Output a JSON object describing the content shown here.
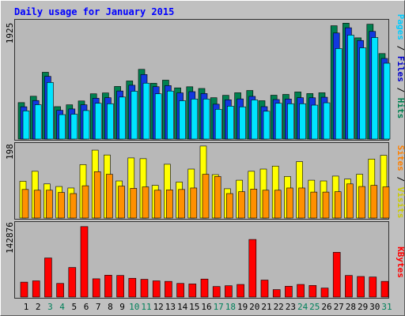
{
  "chart_data": [
    {
      "type": "bar",
      "title": "Daily usage for January 2015",
      "ymax_label": "1925",
      "right_labels": [
        {
          "text": "Pages",
          "color": "#00ccff"
        },
        {
          "text": " / ",
          "color": "#000000"
        },
        {
          "text": "Files",
          "color": "#0000cc"
        },
        {
          "text": " / ",
          "color": "#000000"
        },
        {
          "text": "Hits",
          "color": "#008050"
        }
      ],
      "colors": {
        "hits": "#008050",
        "files": "#1238e0",
        "pages": "#00e4ff"
      },
      "categories": [
        "1",
        "2",
        "3",
        "4",
        "5",
        "6",
        "7",
        "8",
        "9",
        "10",
        "11",
        "12",
        "13",
        "14",
        "15",
        "16",
        "17",
        "18",
        "19",
        "20",
        "21",
        "22",
        "23",
        "24",
        "25",
        "26",
        "27",
        "28",
        "29",
        "30",
        "31"
      ],
      "weekend_days": [
        3,
        4,
        10,
        11,
        17,
        18,
        24,
        25,
        31
      ],
      "series": [
        {
          "name": "Hits",
          "values": [
            596,
            700,
            1092,
            530,
            560,
            623,
            740,
            754,
            860,
            950,
            1140,
            912,
            963,
            837,
            855,
            827,
            676,
            715,
            757,
            794,
            627,
            717,
            730,
            770,
            744,
            757,
            1853,
            1895,
            1655,
            1878,
            1398
          ]
        },
        {
          "name": "Files",
          "values": [
            528,
            630,
            1025,
            470,
            492,
            560,
            667,
            676,
            786,
            880,
            1055,
            856,
            874,
            755,
            775,
            744,
            570,
            642,
            657,
            698,
            530,
            646,
            654,
            676,
            675,
            684,
            1734,
            1820,
            1612,
            1760,
            1318
          ]
        },
        {
          "name": "Pages",
          "values": [
            461,
            562,
            925,
            400,
            407,
            466,
            585,
            578,
            687,
            782,
            914,
            740,
            785,
            627,
            655,
            655,
            487,
            538,
            527,
            640,
            455,
            585,
            578,
            578,
            555,
            593,
            1480,
            1700,
            1492,
            1660,
            1240
          ]
        }
      ]
    },
    {
      "type": "bar",
      "ymax_label": "198",
      "right_labels": [
        {
          "text": "Sites",
          "color": "#ff8000"
        },
        {
          "text": " / ",
          "color": "#000000"
        },
        {
          "text": "Visits",
          "color": "#cccc00"
        }
      ],
      "colors": {
        "visits": "#ffff00",
        "sites": "#ff9000"
      },
      "categories": [
        "1",
        "2",
        "3",
        "4",
        "5",
        "6",
        "7",
        "8",
        "9",
        "10",
        "11",
        "12",
        "13",
        "14",
        "15",
        "16",
        "17",
        "18",
        "19",
        "20",
        "21",
        "22",
        "23",
        "24",
        "25",
        "26",
        "27",
        "28",
        "29",
        "30",
        "31"
      ],
      "series": [
        {
          "name": "Visits",
          "values": [
            99,
            126,
            92,
            85,
            81,
            144,
            183,
            170,
            100,
            162,
            160,
            88,
            145,
            97,
            132,
            194,
            117,
            79,
            102,
            126,
            132,
            140,
            112,
            152,
            102,
            100,
            113,
            105,
            118,
            159,
            169
          ]
        },
        {
          "name": "Sites",
          "values": [
            77,
            75,
            75,
            69,
            66,
            87,
            125,
            118,
            86,
            80,
            84,
            75,
            76,
            77,
            81,
            118,
            112,
            66,
            71,
            78,
            75,
            75,
            81,
            81,
            70,
            70,
            71,
            92,
            85,
            88,
            84
          ]
        }
      ]
    },
    {
      "type": "bar",
      "ymax_label": "142876",
      "right_labels": [
        {
          "text": "KBytes",
          "color": "#ff0000"
        }
      ],
      "colors": {
        "kbytes": "#ff0000"
      },
      "categories": [
        "1",
        "2",
        "3",
        "4",
        "5",
        "6",
        "7",
        "8",
        "9",
        "10",
        "11",
        "12",
        "13",
        "14",
        "15",
        "16",
        "17",
        "18",
        "19",
        "20",
        "21",
        "22",
        "23",
        "24",
        "25",
        "26",
        "27",
        "28",
        "29",
        "30",
        "31"
      ],
      "series": [
        {
          "name": "KBytes",
          "values": [
            29000,
            31500,
            76000,
            26500,
            57500,
            137000,
            35500,
            42500,
            42000,
            36500,
            34500,
            31500,
            30500,
            26500,
            25500,
            35000,
            20500,
            22000,
            24500,
            112000,
            33000,
            14500,
            21000,
            24500,
            22500,
            17500,
            87000,
            42000,
            40000,
            39000,
            30500
          ]
        }
      ]
    }
  ]
}
